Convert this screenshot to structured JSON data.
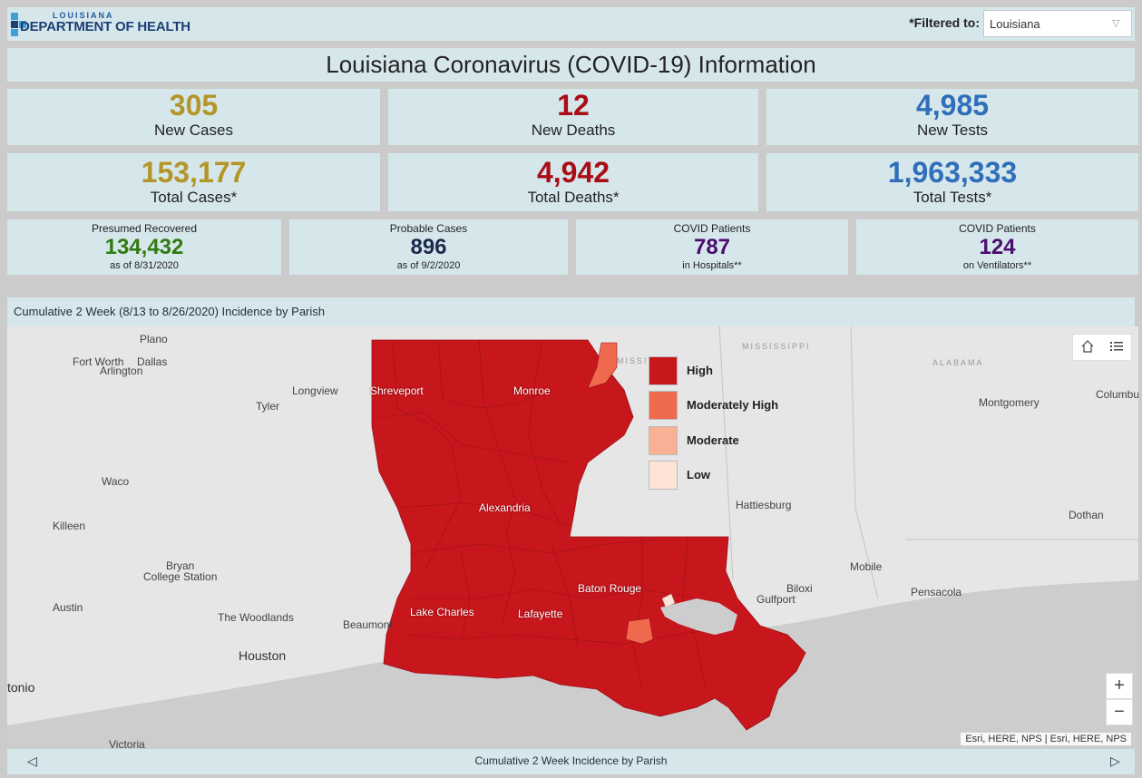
{
  "header": {
    "logo_sub": "LOUISIANA",
    "logo_main": "DEPARTMENT OF HEALTH",
    "filter_label": "*Filtered to:",
    "filter_value": "Louisiana"
  },
  "title": "Louisiana Coronavirus (COVID-19) Information",
  "stats_row1": [
    {
      "value": "305",
      "label": "New Cases",
      "color": "#b49527"
    },
    {
      "value": "12",
      "label": "New Deaths",
      "color": "#a90d16"
    },
    {
      "value": "4,985",
      "label": "New Tests",
      "color": "#2f6fb9"
    }
  ],
  "stats_row2": [
    {
      "value": "153,177",
      "label": "Total Cases*",
      "color": "#b49527"
    },
    {
      "value": "4,942",
      "label": "Total Deaths*",
      "color": "#a90d16"
    },
    {
      "value": "1,963,333",
      "label": "Total Tests*",
      "color": "#2f6fb9"
    }
  ],
  "stats_row3": [
    {
      "top": "Presumed Recovered",
      "value": "134,432",
      "bottom": "as of 8/31/2020",
      "color": "#317a10"
    },
    {
      "top": "Probable Cases",
      "value": "896",
      "bottom": "as of 9/2/2020",
      "color": "#1b2a4a"
    },
    {
      "top": "COVID Patients",
      "value": "787",
      "bottom": "in Hospitals**",
      "color": "#4b0d6e"
    },
    {
      "top": "COVID Patients",
      "value": "124",
      "bottom": "on Ventilators**",
      "color": "#4b0d6e"
    }
  ],
  "map": {
    "header": "Cumulative 2 Week (8/13 to 8/26/2020) Incidence by Parish",
    "legend": [
      {
        "label": "High",
        "color": "#c8161d"
      },
      {
        "label": "Moderately High",
        "color": "#ef6a4c"
      },
      {
        "label": "Moderate",
        "color": "#f8b195"
      },
      {
        "label": "Low",
        "color": "#fde3d8"
      }
    ],
    "cities": {
      "plano": "Plano",
      "fort_worth": "Fort Worth",
      "dallas": "Dallas",
      "arlington": "Arlington",
      "longview": "Longview",
      "tyler": "Tyler",
      "shreveport": "Shreveport",
      "monroe": "Monroe",
      "waco": "Waco",
      "killeen": "Killeen",
      "alexandria": "Alexandria",
      "bryan": "Bryan",
      "college_station": "College Station",
      "austin": "Austin",
      "the_woodlands": "The Woodlands",
      "houston": "Houston",
      "beaumont": "Beaumont",
      "lake_charles": "Lake Charles",
      "lafayette": "Lafayette",
      "baton_rouge": "Baton Rouge",
      "hattiesburg": "Hattiesburg",
      "montgomery": "Montgomery",
      "columbus": "Columbu",
      "dothan": "Dothan",
      "mobile": "Mobile",
      "pensacola": "Pensacola",
      "biloxi": "Biloxi",
      "gulfport": "Gulfport",
      "san_antonio": "tonio",
      "victoria": "Victoria",
      "mississippi_state": "MISSISSIPPI",
      "mississippi_state_2": "MISSI",
      "alabama_state": "ALABAMA"
    },
    "zoom_in": "+",
    "zoom_out": "−",
    "attribution": "Esri, HERE, NPS | Esri, HERE, NPS"
  },
  "footer": {
    "label": "Cumulative 2 Week Incidence by Parish",
    "prev": "◁",
    "next": "▷"
  }
}
